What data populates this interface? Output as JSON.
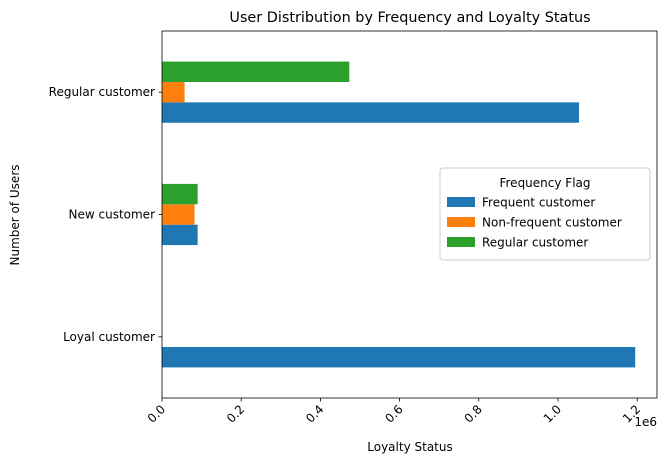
{
  "chart_data": {
    "type": "bar",
    "orientation": "horizontal",
    "title": "User Distribution by Frequency and Loyalty Status",
    "xlabel": "Loyalty Status",
    "ylabel": "Number of Users",
    "x_offset_text": "1e6",
    "xlim": [
      0,
      1250000
    ],
    "x_ticks": [
      0,
      200000,
      400000,
      600000,
      800000,
      1000000,
      1200000
    ],
    "x_tick_labels": [
      "0.0",
      "0.2",
      "0.4",
      "0.6",
      "0.8",
      "1.0",
      "1.2"
    ],
    "x_tick_rotation": -45,
    "categories": [
      "Loyal customer",
      "New customer",
      "Regular customer"
    ],
    "series": [
      {
        "name": "Frequent customer",
        "color": "#1f77b4",
        "values": [
          1195000,
          90000,
          1053000
        ]
      },
      {
        "name": "Non-frequent customer",
        "color": "#ff7f0e",
        "values": [
          0,
          82000,
          57000
        ]
      },
      {
        "name": "Regular customer",
        "color": "#2ca02c",
        "values": [
          0,
          90000,
          473000
        ]
      }
    ],
    "legend": {
      "title": "Frequency Flag",
      "placement": "center-right"
    },
    "grid": false
  }
}
